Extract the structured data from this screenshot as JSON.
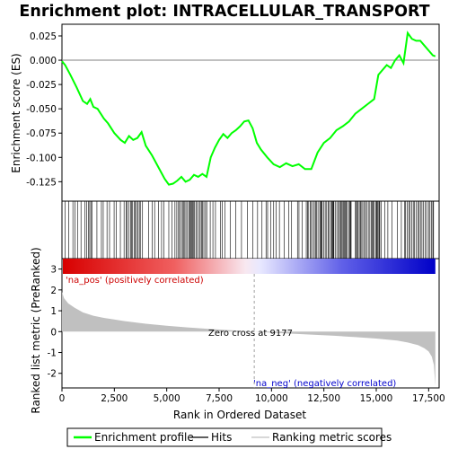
{
  "chart_data": {
    "type": "line",
    "title": "Enrichment plot: INTRACELLULAR_TRANSPORT",
    "xlabel": "Rank in Ordered Dataset",
    "ylabel_top": "Enrichment score (ES)",
    "ylabel_bottom": "Ranked list metric (PreRanked)",
    "xlim": [
      0,
      18000
    ],
    "es_ylim": [
      -0.145,
      0.037
    ],
    "metric_ylim": [
      -2.7,
      3.5
    ],
    "x_ticks": [
      0,
      2500,
      5000,
      7500,
      10000,
      12500,
      15000,
      17500
    ],
    "x_tick_labels": [
      "0",
      "2,500",
      "5,000",
      "7,500",
      "10,000",
      "12,500",
      "15,000",
      "17,500"
    ],
    "es_ticks": [
      0.025,
      0.0,
      -0.025,
      -0.05,
      -0.075,
      -0.1,
      -0.125
    ],
    "es_tick_labels": [
      "0.025",
      "0.000",
      "-0.025",
      "-0.050",
      "-0.075",
      "-0.100",
      "-0.125"
    ],
    "metric_ticks": [
      3,
      2,
      1,
      0,
      -1,
      -2
    ],
    "metric_tick_labels": [
      "3",
      "2",
      "1",
      "0",
      "-1",
      "-2"
    ],
    "enrichment_profile": {
      "x": [
        0,
        150,
        400,
        700,
        1000,
        1200,
        1350,
        1500,
        1700,
        2000,
        2200,
        2500,
        2800,
        3000,
        3200,
        3400,
        3600,
        3800,
        4000,
        4300,
        4600,
        4900,
        5100,
        5300,
        5500,
        5700,
        5900,
        6100,
        6300,
        6500,
        6700,
        6900,
        7100,
        7300,
        7500,
        7700,
        7900,
        8100,
        8300,
        8500,
        8700,
        8900,
        9100,
        9300,
        9500,
        9800,
        10100,
        10400,
        10700,
        11000,
        11300,
        11600,
        11900,
        12200,
        12500,
        12800,
        13100,
        13400,
        13700,
        14000,
        14300,
        14600,
        14900,
        15100,
        15300,
        15500,
        15700,
        15900,
        16100,
        16300,
        16500,
        16700,
        16900,
        17100,
        17300,
        17500,
        17700,
        17820
      ],
      "y": [
        -0.001,
        -0.005,
        -0.015,
        -0.028,
        -0.042,
        -0.045,
        -0.04,
        -0.048,
        -0.05,
        -0.06,
        -0.065,
        -0.075,
        -0.082,
        -0.085,
        -0.078,
        -0.082,
        -0.08,
        -0.074,
        -0.088,
        -0.098,
        -0.11,
        -0.122,
        -0.128,
        -0.127,
        -0.124,
        -0.12,
        -0.125,
        -0.123,
        -0.118,
        -0.12,
        -0.117,
        -0.12,
        -0.1,
        -0.09,
        -0.082,
        -0.076,
        -0.08,
        -0.075,
        -0.072,
        -0.068,
        -0.063,
        -0.062,
        -0.07,
        -0.085,
        -0.092,
        -0.1,
        -0.107,
        -0.11,
        -0.106,
        -0.109,
        -0.107,
        -0.112,
        -0.112,
        -0.095,
        -0.085,
        -0.08,
        -0.072,
        -0.068,
        -0.063,
        -0.055,
        -0.05,
        -0.045,
        -0.04,
        -0.015,
        -0.01,
        -0.005,
        -0.008,
        0.0,
        0.005,
        -0.003,
        0.028,
        0.022,
        0.02,
        0.02,
        0.015,
        0.01,
        0.005,
        0.004
      ]
    },
    "metric_scores": {
      "x": [
        0,
        100,
        300,
        600,
        1000,
        1500,
        2000,
        3000,
        4000,
        5000,
        6000,
        7000,
        8000,
        9177,
        10000,
        11000,
        12000,
        13000,
        14000,
        15000,
        16000,
        16500,
        17000,
        17300,
        17500,
        17650,
        17750,
        17820
      ],
      "y": [
        1.9,
        1.6,
        1.35,
        1.15,
        0.92,
        0.76,
        0.66,
        0.5,
        0.38,
        0.28,
        0.2,
        0.13,
        0.07,
        0.0,
        -0.05,
        -0.1,
        -0.15,
        -0.2,
        -0.26,
        -0.33,
        -0.43,
        -0.52,
        -0.65,
        -0.8,
        -0.95,
        -1.2,
        -1.6,
        -2.6
      ]
    },
    "zero_cross": 9177,
    "annotations": {
      "pos": "'na_pos' (positively correlated)",
      "neg": "'na_neg' (negatively correlated)",
      "zero": "Zero cross at 9177"
    },
    "colors": {
      "profile": "#00ff00",
      "pos": "#cc0000",
      "neg": "#0000cc",
      "metric_fill": "#c0c0c0",
      "zero_line": "#a0a0a0"
    },
    "legend": [
      {
        "label": "Enrichment profile",
        "kind": "line",
        "color": "#00ff00"
      },
      {
        "label": "Hits",
        "kind": "line",
        "color": "#000000"
      },
      {
        "label": "Ranking metric scores",
        "kind": "line",
        "color": "#c0c0c0"
      }
    ]
  }
}
